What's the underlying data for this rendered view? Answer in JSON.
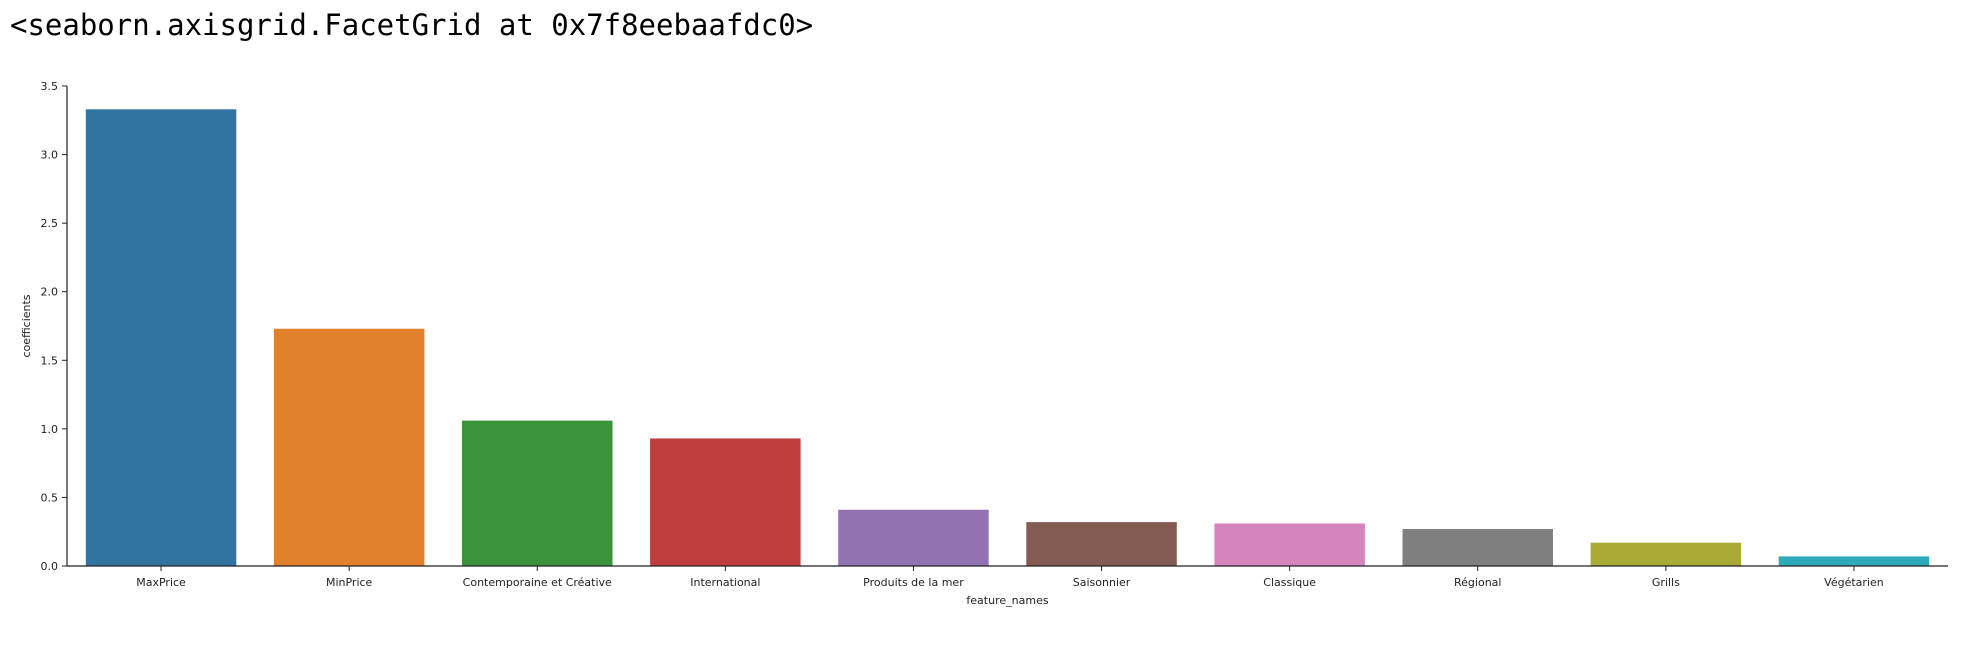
{
  "output_repr": "<seaborn.axisgrid.FacetGrid at 0x7f8eebaafdc0>",
  "chart_data": {
    "type": "bar",
    "title": "",
    "xlabel": "feature_names",
    "ylabel": "coefficients",
    "ylim": [
      0,
      3.5
    ],
    "yticks": [
      "0.0",
      "0.5",
      "1.0",
      "1.5",
      "2.0",
      "2.5",
      "3.0",
      "3.5"
    ],
    "grid": false,
    "categories": [
      "MaxPrice",
      "MinPrice",
      "Contemporaine et Créative",
      "International",
      "Produits de la mer",
      "Saisonnier",
      "Classique",
      "Régional",
      "Grills",
      "Végétarien"
    ],
    "values": [
      3.33,
      1.73,
      1.06,
      0.93,
      0.41,
      0.32,
      0.31,
      0.27,
      0.17,
      0.07
    ],
    "colors": [
      "#3274a1",
      "#e1812c",
      "#3a923a",
      "#c03d3e",
      "#9372b2",
      "#845b53",
      "#d684bd",
      "#7f7f7f",
      "#a9aa35",
      "#2eabb8"
    ]
  }
}
